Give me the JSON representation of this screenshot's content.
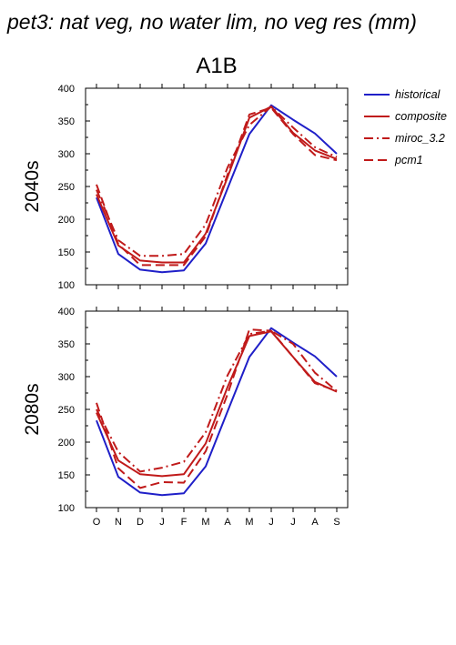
{
  "header": "pet3: nat veg, no water lim, no veg res (mm)",
  "title": "A1B",
  "colors": {
    "historical": "#1f1fc8",
    "scenario": "#c01a1a"
  },
  "chart_data": [
    {
      "type": "line",
      "row_label": "2040s",
      "categories": [
        "O",
        "N",
        "D",
        "J",
        "F",
        "M",
        "A",
        "M",
        "J",
        "J",
        "A",
        "S"
      ],
      "ylim": [
        100,
        400
      ],
      "yticks": [
        "100",
        "150",
        "200",
        "250",
        "300",
        "350",
        "400"
      ],
      "series": [
        {
          "name": "historical",
          "dash": "solid",
          "values": [
            233,
            147,
            123,
            119,
            122,
            163,
            247,
            330,
            374,
            352,
            331,
            300
          ]
        },
        {
          "name": "composite",
          "dash": "solid",
          "values": [
            238,
            160,
            137,
            134,
            134,
            178,
            264,
            355,
            372,
            332,
            305,
            292
          ]
        },
        {
          "name": "miroc_3.2",
          "dash": "dashdot",
          "values": [
            245,
            168,
            144,
            144,
            147,
            192,
            279,
            344,
            372,
            340,
            310,
            295
          ]
        },
        {
          "name": "pcm1",
          "dash": "dash",
          "values": [
            253,
            162,
            130,
            130,
            130,
            174,
            268,
            360,
            370,
            330,
            298,
            290
          ]
        }
      ]
    },
    {
      "type": "line",
      "row_label": "2080s",
      "categories": [
        "O",
        "N",
        "D",
        "J",
        "F",
        "M",
        "A",
        "M",
        "J",
        "J",
        "A",
        "S"
      ],
      "ylim": [
        100,
        400
      ],
      "yticks": [
        "100",
        "150",
        "200",
        "250",
        "300",
        "350",
        "400"
      ],
      "series": [
        {
          "name": "historical",
          "dash": "solid",
          "values": [
            233,
            147,
            123,
            119,
            122,
            163,
            247,
            330,
            374,
            352,
            331,
            300
          ]
        },
        {
          "name": "composite",
          "dash": "solid",
          "values": [
            245,
            172,
            151,
            148,
            151,
            198,
            284,
            362,
            369,
            330,
            292,
            277
          ]
        },
        {
          "name": "miroc_3.2",
          "dash": "dashdot",
          "values": [
            250,
            185,
            155,
            161,
            170,
            215,
            302,
            365,
            370,
            350,
            306,
            278
          ]
        },
        {
          "name": "pcm1",
          "dash": "dash",
          "values": [
            260,
            160,
            130,
            139,
            138,
            186,
            273,
            372,
            370,
            330,
            290,
            278
          ]
        }
      ]
    }
  ],
  "legend": [
    {
      "label": "historical",
      "color": "#1f1fc8",
      "dash": "solid"
    },
    {
      "label": "composite",
      "color": "#c01a1a",
      "dash": "solid"
    },
    {
      "label": "miroc_3.2",
      "color": "#c01a1a",
      "dash": "dashdot"
    },
    {
      "label": "pcm1",
      "color": "#c01a1a",
      "dash": "dash"
    }
  ]
}
